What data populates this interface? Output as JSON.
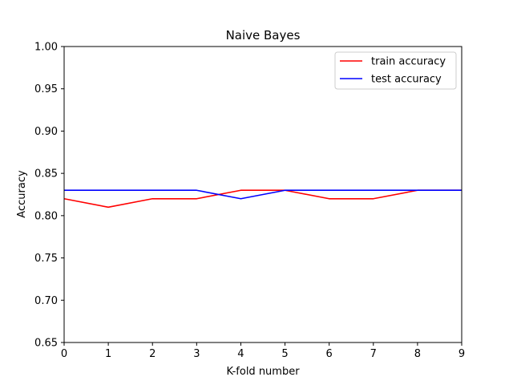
{
  "chart_data": {
    "type": "line",
    "title": "Naive Bayes",
    "xlabel": "K-fold number",
    "ylabel": "Accuracy",
    "x": [
      0,
      1,
      2,
      3,
      4,
      5,
      6,
      7,
      8,
      9
    ],
    "xlim": [
      0,
      9
    ],
    "ylim": [
      0.65,
      1.0
    ],
    "xticks": [
      "0",
      "1",
      "2",
      "3",
      "4",
      "5",
      "6",
      "7",
      "8",
      "9"
    ],
    "yticks": [
      "0.65",
      "0.70",
      "0.75",
      "0.80",
      "0.85",
      "0.90",
      "0.95",
      "1.00"
    ],
    "grid": false,
    "legend_position": "top-right",
    "series": [
      {
        "name": "train accuracy",
        "color": "#ff0000",
        "values": [
          0.82,
          0.81,
          0.82,
          0.82,
          0.83,
          0.83,
          0.82,
          0.82,
          0.83,
          0.83
        ]
      },
      {
        "name": "test accuracy",
        "color": "#0000ff",
        "values": [
          0.83,
          0.83,
          0.83,
          0.83,
          0.82,
          0.83,
          0.83,
          0.83,
          0.83,
          0.83
        ]
      }
    ]
  }
}
